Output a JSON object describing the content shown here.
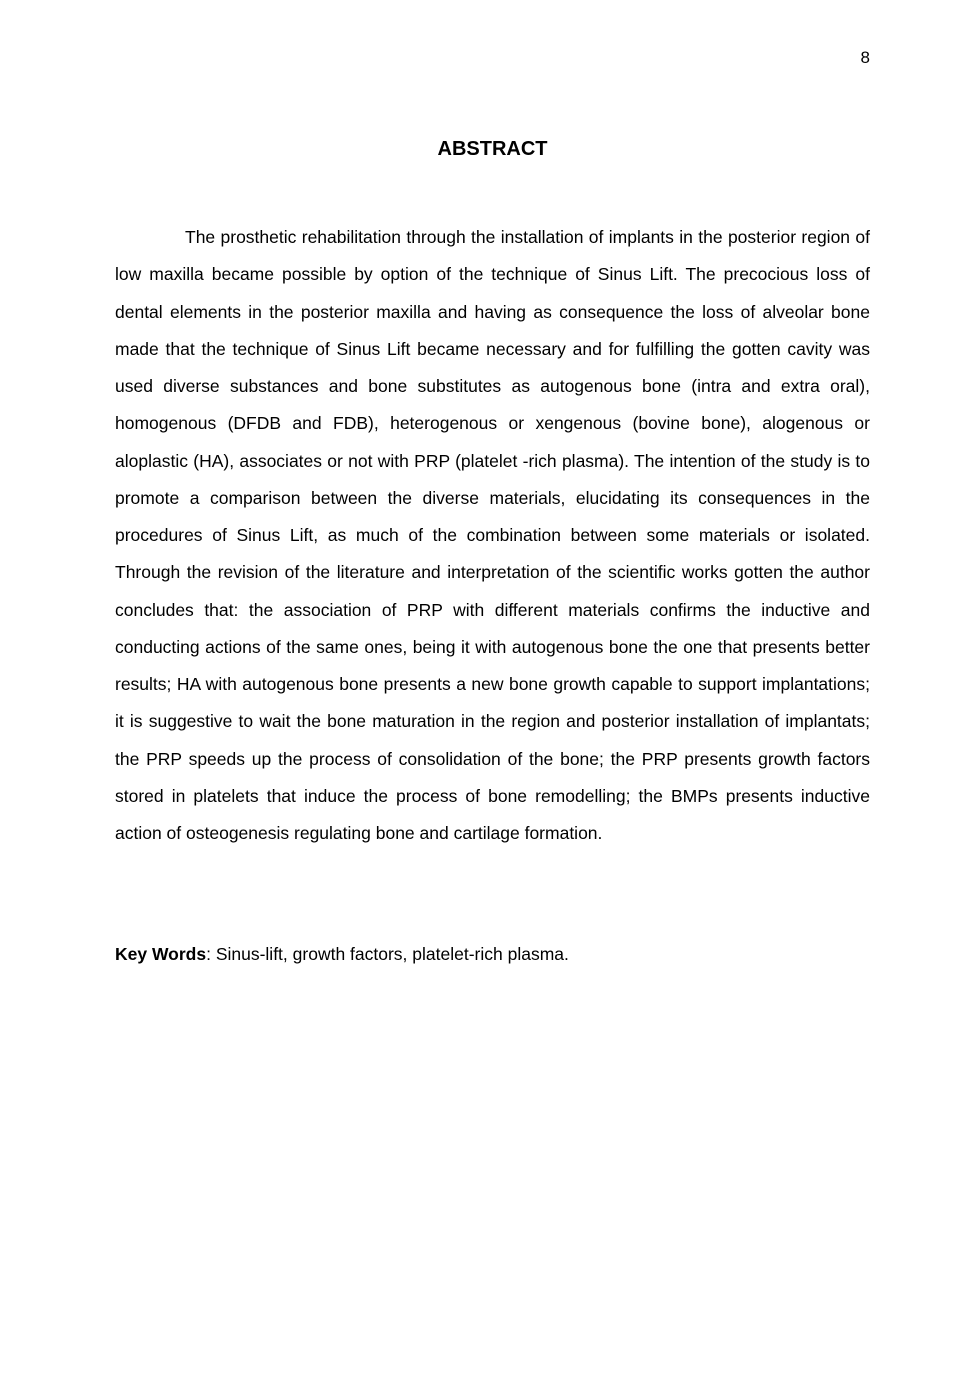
{
  "page": {
    "number": "8",
    "background": "#ffffff",
    "text_color": "#000000",
    "font_family": "Arial, Helvetica, sans-serif",
    "body_fontsize_pt": 13,
    "heading_fontsize_pt": 15
  },
  "heading": "ABSTRACT",
  "abstract": "The prosthetic rehabilitation through the installation of implants in the posterior region of low maxilla became possible by option of the technique of Sinus Lift. The precocious loss of dental elements in the posterior maxilla and having as consequence the loss of alveolar bone made that the technique of Sinus Lift became necessary and for fulfilling the gotten cavity was used diverse substances and bone substitutes as autogenous bone (intra and extra oral), homogenous (DFDB and FDB), heterogenous or xengenous (bovine bone), alogenous or aloplastic (HA), associates or not with PRP (platelet -rich plasma). The intention of the study is to promote a comparison between the diverse materials, elucidating its consequences in the procedures of Sinus Lift, as much of the combination between some materials or isolated. Through the revision of the literature and interpretation of the scientific works gotten the author concludes that: the association of PRP with different materials confirms the inductive and conducting actions of the same ones, being it with autogenous bone the one that presents better results; HA with autogenous bone presents a new bone growth capable to support implantations; it is suggestive to wait the bone maturation in the region and posterior installation of implantats; the PRP speeds up the process of consolidation of the bone; the PRP presents growth factors stored in platelets that induce the process of bone remodelling; the BMPs presents inductive action of osteogenesis regulating bone and cartilage formation.",
  "keywords": {
    "label": "Key Words",
    "value": ": Sinus-lift, growth factors, platelet-rich plasma."
  }
}
